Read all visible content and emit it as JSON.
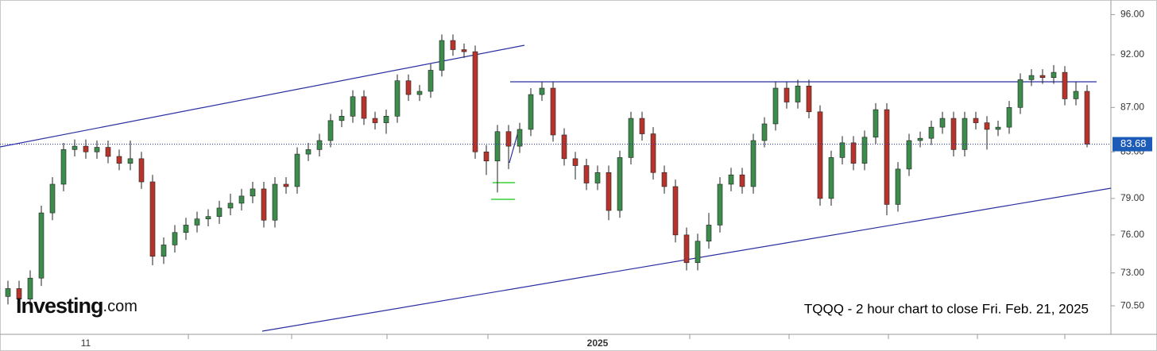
{
  "chart_data": {
    "type": "candlestick",
    "annotation": "TQQQ - 2 hour chart to close Fri. Feb. 21, 2025",
    "logo": {
      "name": "Investing",
      "suffix": ".com"
    },
    "log_scale": true,
    "grid": false,
    "up_color": "#3c8c4c",
    "down_color": "#b8332b",
    "ylim": [
      68.4,
      97.5
    ],
    "yticks": [
      {
        "value": 96,
        "label": "96.00"
      },
      {
        "value": 92,
        "label": "92.00"
      },
      {
        "value": 87,
        "label": "87.00"
      },
      {
        "value": 83,
        "label": "83.00"
      },
      {
        "value": 79,
        "label": "79.00"
      },
      {
        "value": 76,
        "label": "76.00"
      },
      {
        "value": 73,
        "label": "73.00"
      },
      {
        "value": 70.5,
        "label": "70.50"
      }
    ],
    "last_price": 83.68,
    "categories": [
      null,
      null,
      null,
      null,
      null,
      null,
      null,
      "11",
      null,
      null,
      null,
      null,
      null,
      null,
      null,
      null,
      null,
      null,
      null,
      null,
      null,
      null,
      null,
      null,
      null,
      null,
      null,
      null,
      null,
      null,
      null,
      null,
      null,
      null,
      null,
      null,
      null,
      null,
      null,
      null,
      null,
      null,
      null,
      null,
      null,
      null,
      null,
      null,
      null,
      null,
      null,
      null,
      null,
      "2025",
      null,
      null,
      null,
      null,
      null,
      null,
      null,
      null,
      null,
      null,
      null,
      null,
      null,
      null,
      null,
      null,
      null,
      null,
      null,
      null,
      null,
      null,
      null,
      null,
      null,
      null,
      null,
      null,
      null,
      null,
      null,
      null,
      null,
      null,
      null,
      null,
      null,
      null,
      null,
      null,
      null,
      null,
      null,
      null
    ],
    "open": [
      71.2,
      71.8,
      71.0,
      72.6,
      77.8,
      80.2,
      83.2,
      83.5,
      83.0,
      83.4,
      82.6,
      82.0,
      82.4,
      80.4,
      74.3,
      75.2,
      76.2,
      76.8,
      77.3,
      77.5,
      78.2,
      78.6,
      79.2,
      79.8,
      77.2,
      80.2,
      80.0,
      82.8,
      83.2,
      84.0,
      85.8,
      86.2,
      88.0,
      86.0,
      85.6,
      86.2,
      89.5,
      88.2,
      88.5,
      90.5,
      93.4,
      92.5,
      92.3,
      83.0,
      82.2,
      84.8,
      83.5,
      85.0,
      88.2,
      88.8,
      84.5,
      82.4,
      81.8,
      80.3,
      81.2,
      78.0,
      82.5,
      86.0,
      84.6,
      81.2,
      80.0,
      76.0,
      73.8,
      75.5,
      76.8,
      80.2,
      81.0,
      80.0,
      84.0,
      85.5,
      88.8,
      87.5,
      89.0,
      86.6,
      79.0,
      82.5,
      83.8,
      82.0,
      84.3,
      86.8,
      78.5,
      81.5,
      84.0,
      84.2,
      85.2,
      86.0,
      83.2,
      86.0,
      85.6,
      85.0,
      85.2,
      87.0,
      89.6,
      90.0,
      89.8,
      90.3,
      87.8,
      88.5
    ],
    "high": [
      72.4,
      72.4,
      73.2,
      78.4,
      80.8,
      83.8,
      84.1,
      84.1,
      84.0,
      84.0,
      83.2,
      84.0,
      83.0,
      81.0,
      75.8,
      76.8,
      77.4,
      77.9,
      78.1,
      78.8,
      79.4,
      79.8,
      80.4,
      80.4,
      80.8,
      80.8,
      83.4,
      83.8,
      84.6,
      86.4,
      86.8,
      88.6,
      88.6,
      86.6,
      86.8,
      90.1,
      90.1,
      89.1,
      91.1,
      94.0,
      94.0,
      93.1,
      92.9,
      83.6,
      85.4,
      85.4,
      85.6,
      88.8,
      89.4,
      89.4,
      85.1,
      83.0,
      82.4,
      81.8,
      81.8,
      83.1,
      86.6,
      86.6,
      85.2,
      81.8,
      80.6,
      76.6,
      76.1,
      77.8,
      80.8,
      81.6,
      81.6,
      84.6,
      86.1,
      89.4,
      89.4,
      89.6,
      89.6,
      87.2,
      83.1,
      84.4,
      84.4,
      84.9,
      87.4,
      87.4,
      82.1,
      84.6,
      84.8,
      85.8,
      86.6,
      86.6,
      86.6,
      86.6,
      86.2,
      85.8,
      87.6,
      90.2,
      90.6,
      90.6,
      91.0,
      90.9,
      89.4,
      89.1
    ],
    "low": [
      70.6,
      70.4,
      70.4,
      72.0,
      77.2,
      79.6,
      82.6,
      82.4,
      82.4,
      82.0,
      81.4,
      81.4,
      79.8,
      73.6,
      73.7,
      74.6,
      75.6,
      76.2,
      76.7,
      76.9,
      77.6,
      78.0,
      78.6,
      76.6,
      76.6,
      79.4,
      79.4,
      82.2,
      82.6,
      83.4,
      85.2,
      85.6,
      85.4,
      85.0,
      84.6,
      85.6,
      87.6,
      87.6,
      87.9,
      89.9,
      91.9,
      91.7,
      82.4,
      81.0,
      79.5,
      81.5,
      82.9,
      84.4,
      87.6,
      83.9,
      81.8,
      80.6,
      79.7,
      79.7,
      77.2,
      77.4,
      81.9,
      84.0,
      80.6,
      79.4,
      75.4,
      73.2,
      73.2,
      74.9,
      76.2,
      79.6,
      79.4,
      79.4,
      83.4,
      84.9,
      86.9,
      86.9,
      86.0,
      78.4,
      78.4,
      81.9,
      81.4,
      81.4,
      83.7,
      77.6,
      77.9,
      80.9,
      83.4,
      83.6,
      84.6,
      82.6,
      82.6,
      85.0,
      83.2,
      84.4,
      84.6,
      86.4,
      89.0,
      89.2,
      89.2,
      87.2,
      87.2,
      83.4
    ],
    "close": [
      71.8,
      71.0,
      72.6,
      77.8,
      80.2,
      83.2,
      83.5,
      83.0,
      83.4,
      82.6,
      82.0,
      82.4,
      80.4,
      74.3,
      75.2,
      76.2,
      76.8,
      77.3,
      77.5,
      78.2,
      78.6,
      79.2,
      79.8,
      77.2,
      80.2,
      80.0,
      82.8,
      83.2,
      84.0,
      85.8,
      86.2,
      88.0,
      86.0,
      85.6,
      86.2,
      89.5,
      88.2,
      88.5,
      90.5,
      93.4,
      92.5,
      92.3,
      83.0,
      82.2,
      84.8,
      83.5,
      85.0,
      88.2,
      88.8,
      84.5,
      82.4,
      81.8,
      80.3,
      81.2,
      78.0,
      82.5,
      86.0,
      84.6,
      81.2,
      80.0,
      76.0,
      73.8,
      75.5,
      76.8,
      80.2,
      81.0,
      80.0,
      84.0,
      85.5,
      88.8,
      87.5,
      89.0,
      86.6,
      79.0,
      82.5,
      83.8,
      82.0,
      84.3,
      86.8,
      78.5,
      81.5,
      84.0,
      84.2,
      85.2,
      86.0,
      83.2,
      86.0,
      85.6,
      85.0,
      85.2,
      87.0,
      89.6,
      90.0,
      89.8,
      90.3,
      87.8,
      88.5,
      83.68
    ]
  }
}
